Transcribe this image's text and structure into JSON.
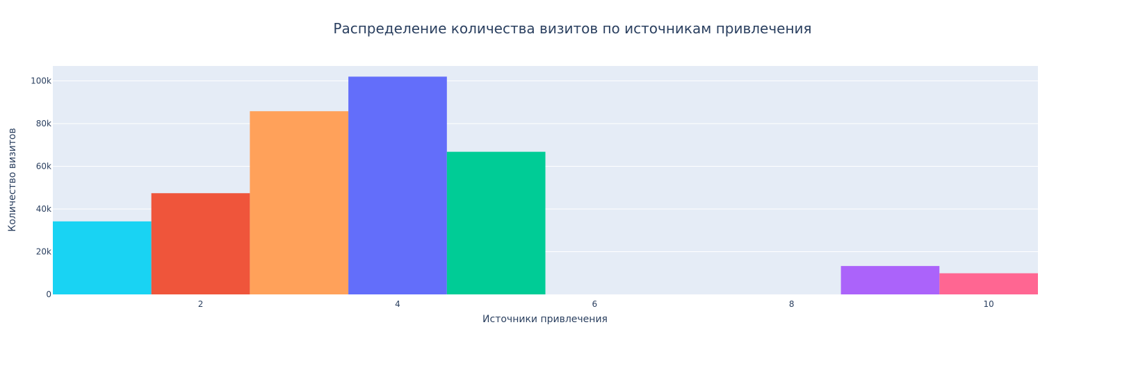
{
  "chart_data": {
    "type": "bar",
    "title": "Распределение количества визитов по источникам привлечения",
    "xlabel": "Источники привлечения",
    "ylabel": "Количество визитов",
    "x_tick_labels": [
      "2",
      "4",
      "6",
      "8",
      "10"
    ],
    "x_ticks": [
      2,
      4,
      6,
      8,
      10
    ],
    "y_tick_labels": [
      "0",
      "20k",
      "40k",
      "60k",
      "80k",
      "100k"
    ],
    "y_ticks": [
      0,
      20000,
      40000,
      60000,
      80000,
      100000
    ],
    "xlim": [
      0.5,
      10.5
    ],
    "ylim": [
      0,
      107000
    ],
    "grid": true,
    "background_color": "#e5ecf6",
    "series": [
      {
        "x": 1,
        "value": 34200,
        "color": "#19d3f3"
      },
      {
        "x": 2,
        "value": 47400,
        "color": "#ef553b"
      },
      {
        "x": 3,
        "value": 85800,
        "color": "#ffa15a"
      },
      {
        "x": 4,
        "value": 102000,
        "color": "#636efa"
      },
      {
        "x": 5,
        "value": 66800,
        "color": "#00cc96"
      },
      {
        "x": 9,
        "value": 13300,
        "color": "#ab63fa"
      },
      {
        "x": 10,
        "value": 9900,
        "color": "#ff6692"
      }
    ]
  }
}
